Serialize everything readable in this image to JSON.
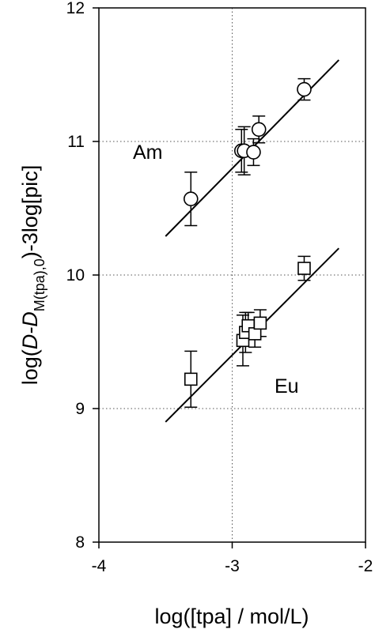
{
  "chart_data": {
    "type": "scatter",
    "title": "",
    "xlabel": "log([tpa] / mol/L)",
    "ylabel": {
      "prefix": "log(",
      "italic": "D-D",
      "subscript": "M(tpa),0",
      "suffix": ")-3log[pic]"
    },
    "xlim": [
      -4,
      -2
    ],
    "ylim": [
      8,
      12
    ],
    "x_ticks": [
      -4,
      -3,
      -2
    ],
    "y_ticks": [
      8,
      9,
      10,
      11,
      12
    ],
    "x_tick_labels": [
      "-4",
      "-3",
      "-2"
    ],
    "y_tick_labels": [
      "8",
      "9",
      "10",
      "11",
      "12"
    ],
    "grid": {
      "style": "dotted",
      "x": [
        -3
      ],
      "y": [
        9,
        10,
        11
      ]
    },
    "series": [
      {
        "name": "Am",
        "marker": "circle",
        "points": [
          {
            "x": -3.31,
            "y": 10.57,
            "err": 0.2
          },
          {
            "x": -2.93,
            "y": 10.93,
            "err": 0.16
          },
          {
            "x": -2.91,
            "y": 10.93,
            "err": 0.18
          },
          {
            "x": -2.84,
            "y": 10.92,
            "err": 0.1
          },
          {
            "x": -2.8,
            "y": 11.09,
            "err": 0.1
          },
          {
            "x": -2.46,
            "y": 11.39,
            "err": 0.08
          }
        ],
        "fit": {
          "x": [
            -3.5,
            -2.2
          ],
          "y": [
            10.29,
            11.61
          ]
        }
      },
      {
        "name": "Eu",
        "marker": "square",
        "points": [
          {
            "x": -3.31,
            "y": 9.22,
            "err": 0.21
          },
          {
            "x": -2.92,
            "y": 9.51,
            "err": 0.19
          },
          {
            "x": -2.9,
            "y": 9.57,
            "err": 0.15
          },
          {
            "x": -2.88,
            "y": 9.62,
            "err": 0.1
          },
          {
            "x": -2.83,
            "y": 9.56,
            "err": 0.1
          },
          {
            "x": -2.79,
            "y": 9.64,
            "err": 0.1
          },
          {
            "x": -2.46,
            "y": 10.05,
            "err": 0.09
          }
        ],
        "fit": {
          "x": [
            -3.5,
            -2.2
          ],
          "y": [
            8.9,
            10.2
          ]
        }
      }
    ]
  }
}
